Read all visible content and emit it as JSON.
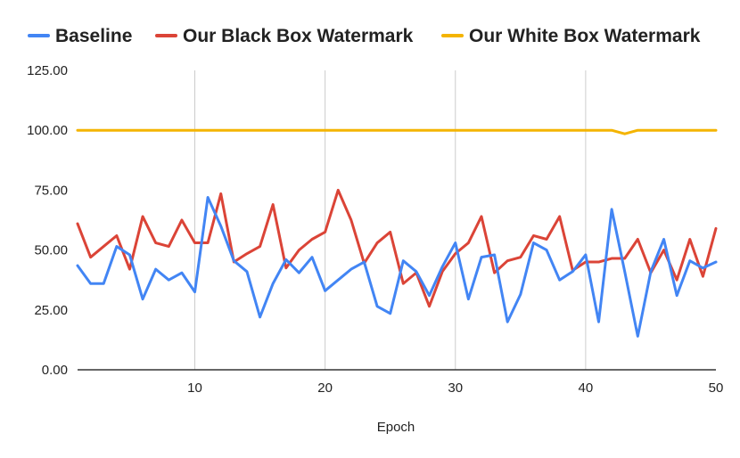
{
  "chart_data": {
    "type": "line",
    "title": "",
    "xlabel": "Epoch",
    "ylabel": "",
    "xlim": [
      1,
      50
    ],
    "ylim": [
      0,
      125
    ],
    "x_ticks": [
      10,
      20,
      30,
      40,
      50
    ],
    "y_ticks": [
      0,
      25,
      50,
      75,
      100,
      125
    ],
    "y_tick_labels": [
      "0.00",
      "25.00",
      "50.00",
      "75.00",
      "100.00",
      "125.00"
    ],
    "grid": "vertical",
    "legend_position": "top",
    "x": [
      1,
      2,
      3,
      4,
      5,
      6,
      7,
      8,
      9,
      10,
      11,
      12,
      13,
      14,
      15,
      16,
      17,
      18,
      19,
      20,
      21,
      22,
      23,
      24,
      25,
      26,
      27,
      28,
      29,
      30,
      31,
      32,
      33,
      34,
      35,
      36,
      37,
      38,
      39,
      40,
      41,
      42,
      43,
      44,
      45,
      46,
      47,
      48,
      49,
      50
    ],
    "series": [
      {
        "name": "Baseline",
        "color": "#4285f4",
        "values": [
          43.5,
          36,
          36,
          51.5,
          48,
          29.5,
          42,
          37.5,
          40.5,
          32.5,
          72,
          60,
          45.5,
          41,
          22,
          36,
          46,
          40.5,
          47,
          33,
          37.5,
          42,
          45,
          26.5,
          23.5,
          45.5,
          41,
          31,
          43,
          53,
          29.5,
          47,
          48,
          20,
          31.5,
          53,
          50,
          37.5,
          41,
          48,
          20,
          67,
          41,
          14,
          41,
          54.5,
          31,
          45.5,
          42.5,
          45
        ]
      },
      {
        "name": "Our Black Box Watermark",
        "color": "#db4437",
        "values": [
          61,
          47,
          51.5,
          56,
          42,
          64,
          53,
          51.5,
          62.5,
          53,
          53,
          73.5,
          45,
          48.5,
          51.5,
          69,
          42.5,
          50,
          54.5,
          57.5,
          75,
          62.5,
          44.5,
          53,
          57.5,
          36,
          40.5,
          26.5,
          41,
          48.5,
          53,
          64,
          40.5,
          45.5,
          47,
          56,
          54.5,
          64,
          41.5,
          45,
          45,
          46.5,
          46.5,
          54.5,
          40.5,
          50,
          37.5,
          54.5,
          39,
          59
        ]
      },
      {
        "name": "Our White Box Watermark",
        "color": "#f4b400",
        "values": [
          100,
          100,
          100,
          100,
          100,
          100,
          100,
          100,
          100,
          100,
          100,
          100,
          100,
          100,
          100,
          100,
          100,
          100,
          100,
          100,
          100,
          100,
          100,
          100,
          100,
          100,
          100,
          100,
          100,
          100,
          100,
          100,
          100,
          100,
          100,
          100,
          100,
          100,
          100,
          100,
          100,
          100,
          98.5,
          100,
          100,
          100,
          100,
          100,
          100,
          100
        ]
      }
    ]
  }
}
